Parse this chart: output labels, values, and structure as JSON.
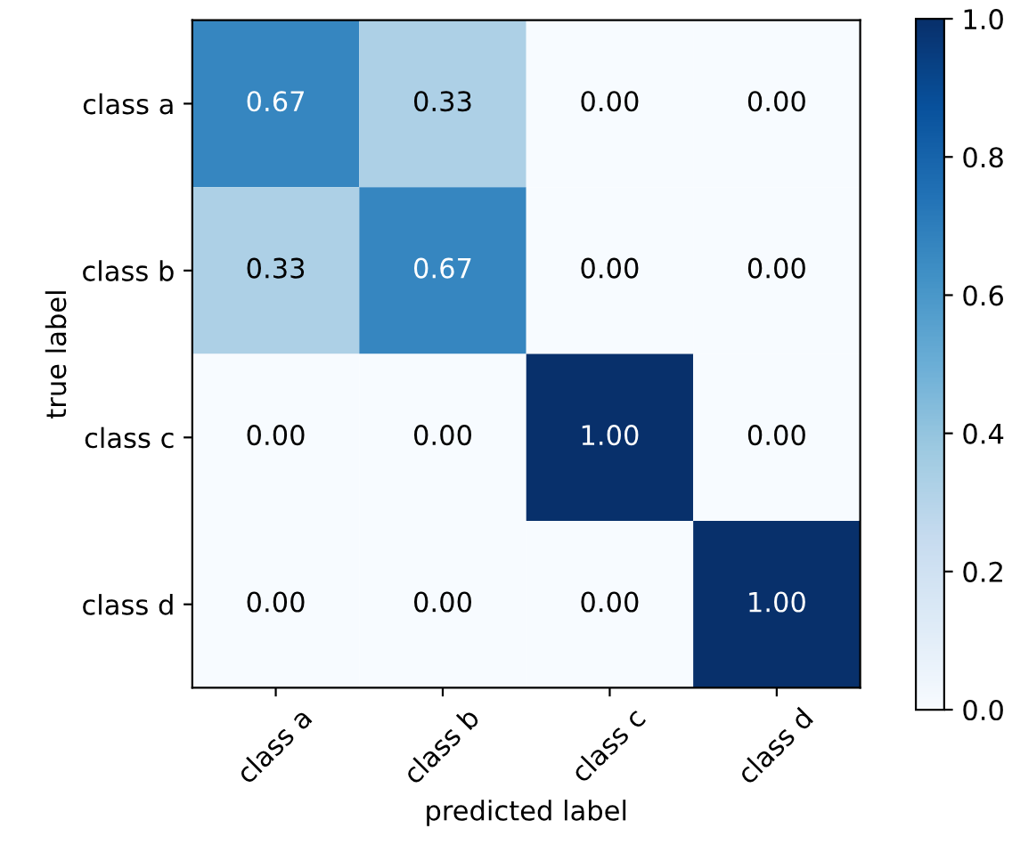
{
  "chart_data": {
    "type": "heatmap",
    "xlabel": "predicted label",
    "ylabel": "true label",
    "categories": [
      "class a",
      "class b",
      "class c",
      "class d"
    ],
    "y_categories": [
      "class a",
      "class b",
      "class c",
      "class d"
    ],
    "cells": [
      [
        0.67,
        0.33,
        0,
        0
      ],
      [
        0.33,
        0.67,
        0,
        0
      ],
      [
        0,
        0,
        1,
        0
      ],
      [
        0,
        0,
        0,
        1
      ]
    ],
    "cell_labels": [
      [
        "0.67",
        "0.33",
        "0.00",
        "0.00"
      ],
      [
        "0.33",
        "0.67",
        "0.00",
        "0.00"
      ],
      [
        "0.00",
        "0.00",
        "1.00",
        "0.00"
      ],
      [
        "0.00",
        "0.00",
        "0.00",
        "1.00"
      ]
    ],
    "clim": [
      0,
      1
    ],
    "cticks": [
      {
        "value": 0,
        "label": "0.0"
      },
      {
        "value": 0.2,
        "label": "0.2"
      },
      {
        "value": 0.4,
        "label": "0.4"
      },
      {
        "value": 0.6,
        "label": "0.6"
      },
      {
        "value": 0.8,
        "label": "0.8"
      },
      {
        "value": 1,
        "label": "1.0"
      }
    ]
  }
}
